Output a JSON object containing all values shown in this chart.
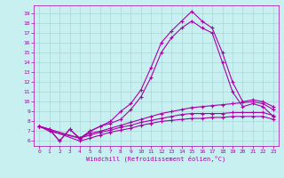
{
  "x_values": [
    0,
    1,
    2,
    3,
    4,
    5,
    6,
    7,
    8,
    9,
    10,
    11,
    12,
    13,
    14,
    15,
    16,
    17,
    18,
    19,
    20,
    21,
    22,
    23
  ],
  "line1": [
    7.5,
    7.2,
    6.0,
    7.2,
    6.2,
    7.0,
    7.5,
    8.0,
    9.0,
    9.8,
    11.2,
    13.5,
    16.0,
    17.2,
    18.2,
    19.2,
    18.2,
    17.5,
    15.0,
    12.0,
    10.0,
    10.2,
    10.0,
    9.5
  ],
  "line2": [
    7.5,
    7.2,
    6.0,
    7.2,
    6.3,
    7.0,
    7.5,
    7.8,
    8.2,
    9.2,
    10.5,
    12.5,
    15.0,
    16.5,
    17.5,
    18.2,
    17.5,
    17.0,
    14.0,
    11.0,
    9.5,
    9.8,
    9.5,
    8.5
  ],
  "line3": [
    7.5,
    7.0,
    null,
    null,
    6.3,
    6.8,
    7.0,
    7.3,
    7.6,
    7.9,
    8.2,
    8.5,
    8.8,
    9.0,
    9.2,
    9.4,
    9.5,
    9.6,
    9.7,
    9.8,
    9.9,
    10.0,
    9.8,
    9.2
  ],
  "line4": [
    7.5,
    null,
    null,
    null,
    6.3,
    6.6,
    6.9,
    7.1,
    7.4,
    7.6,
    7.9,
    8.1,
    8.3,
    8.5,
    8.7,
    8.8,
    8.8,
    8.8,
    8.8,
    8.9,
    8.9,
    8.9,
    8.9,
    8.6
  ],
  "line5": [
    7.5,
    null,
    null,
    null,
    6.0,
    6.3,
    6.6,
    6.9,
    7.1,
    7.3,
    7.6,
    7.8,
    8.0,
    8.1,
    8.2,
    8.3,
    8.3,
    8.4,
    8.4,
    8.5,
    8.5,
    8.5,
    8.5,
    8.2
  ],
  "line_color": "#aa00aa",
  "bg_color": "#c8f0f0",
  "grid_color": "#a8d8d8",
  "xlabel": "Windchill (Refroidissement éolien,°C)",
  "ylim": [
    5.5,
    19.8
  ],
  "xlim": [
    -0.5,
    23.5
  ],
  "yticks": [
    6,
    7,
    8,
    9,
    10,
    11,
    12,
    13,
    14,
    15,
    16,
    17,
    18,
    19
  ],
  "xticks": [
    0,
    1,
    2,
    3,
    4,
    5,
    6,
    7,
    8,
    9,
    10,
    11,
    12,
    13,
    14,
    15,
    16,
    17,
    18,
    19,
    20,
    21,
    22,
    23
  ]
}
